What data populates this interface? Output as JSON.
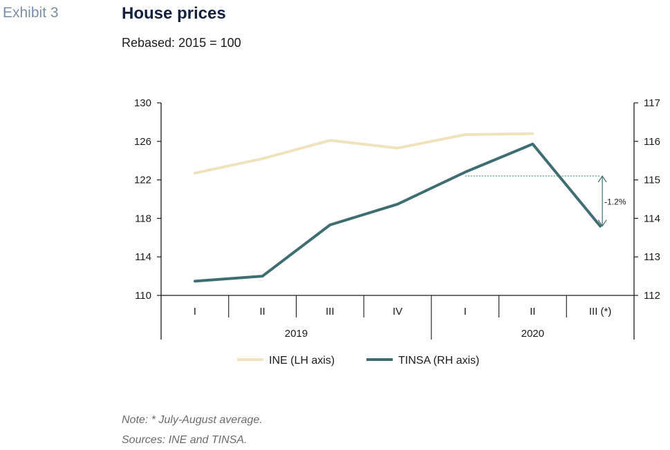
{
  "header": {
    "exhibit": "Exhibit 3",
    "title": "House prices",
    "subtitle": "Rebased: 2015 = 100"
  },
  "notes": {
    "note": "Note: * July-August average.",
    "sources": "Sources: INE and TINSA."
  },
  "chart_data": {
    "type": "line",
    "categories": [
      "I",
      "II",
      "III",
      "IV",
      "I",
      "II",
      "III (*)"
    ],
    "years": [
      {
        "label": "2019",
        "quarters": 4
      },
      {
        "label": "2020",
        "quarters": 3
      }
    ],
    "y_left": {
      "range": [
        110,
        130
      ],
      "ticks": [
        110,
        114,
        118,
        122,
        126,
        130
      ]
    },
    "y_right": {
      "range": [
        112,
        117
      ],
      "ticks": [
        112,
        113,
        114,
        115,
        116,
        117
      ]
    },
    "series": [
      {
        "name": "INE (LH axis)",
        "axis": "left",
        "color": "#f0e2bc",
        "values": [
          122.7,
          124.2,
          126.1,
          125.3,
          126.7,
          126.8,
          null
        ]
      },
      {
        "name": "TINSA (RH axis)",
        "axis": "right",
        "color": "#3f6e72",
        "values": [
          112.37,
          112.5,
          113.83,
          114.37,
          115.2,
          115.93,
          113.8
        ]
      }
    ],
    "reference_line": {
      "value": 115.1,
      "axis": "right",
      "from_category": 4,
      "to_category": 6,
      "color": "#8fbfa4"
    },
    "annotation": {
      "text": "-1.2%",
      "category": 6,
      "from": 115.1,
      "to": 113.8
    },
    "legend": "bottom",
    "grid": false
  }
}
